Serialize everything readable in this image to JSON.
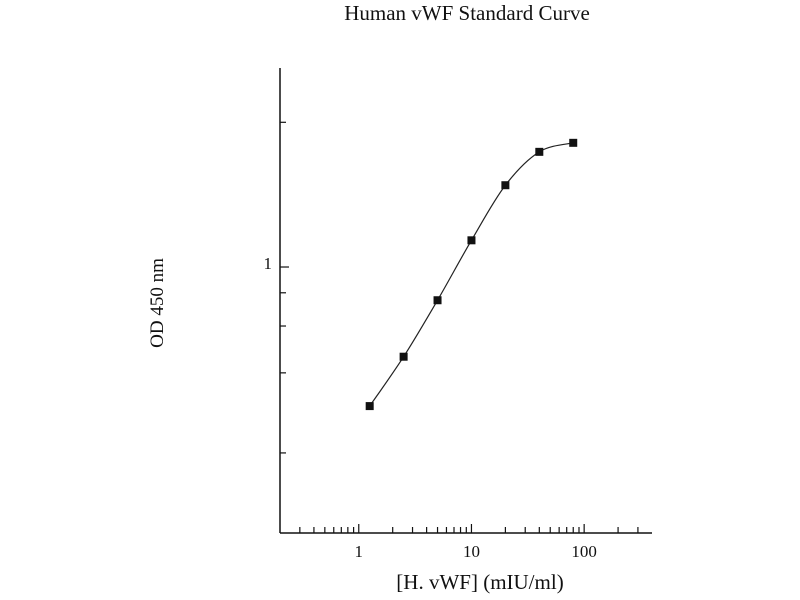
{
  "chart_data": {
    "type": "line",
    "title": "Human vWF Standard Curve",
    "xlabel": "[H. vWF] (mIU/ml)",
    "ylabel": "OD 450 nm",
    "x_scale": "log",
    "y_scale": "log",
    "xlim": [
      0.2,
      400
    ],
    "ylim": [
      0.1,
      5.6
    ],
    "x_tick_labels": [
      {
        "value": 1,
        "label": "1"
      },
      {
        "value": 10,
        "label": "10"
      },
      {
        "value": 100,
        "label": "100"
      }
    ],
    "x_minor_ticks": [
      0.3,
      0.4,
      0.5,
      0.6,
      0.7,
      0.8,
      0.9,
      2,
      3,
      4,
      5,
      6,
      7,
      8,
      9,
      20,
      30,
      40,
      50,
      60,
      70,
      80,
      90,
      200,
      300
    ],
    "y_tick_labels": [
      {
        "value": 1,
        "label": "1"
      }
    ],
    "y_minor_ticks": [
      0.2,
      0.4,
      0.6,
      0.8,
      3.5
    ],
    "grid": false,
    "marker": "square",
    "color": "#111111",
    "series": [
      {
        "x": [
          1.25,
          2.5,
          5,
          10,
          20,
          40,
          80
        ],
        "y": [
          0.3,
          0.46,
          0.75,
          1.26,
          2.03,
          2.71,
          2.93
        ]
      }
    ]
  }
}
